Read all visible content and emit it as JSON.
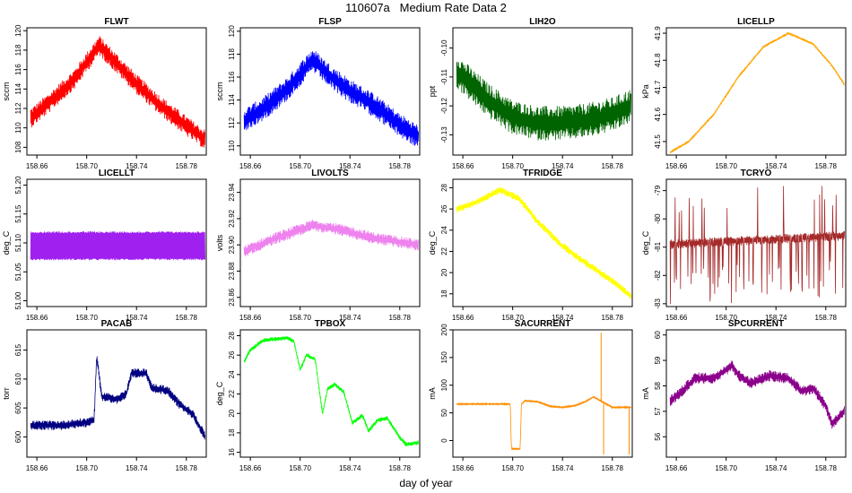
{
  "figure": {
    "title": "110607a   Medium Rate Data 2",
    "shared_xlabel": "day of year"
  },
  "chart_data": [
    {
      "type": "line",
      "title": "FLWT",
      "ylabel": "sccm",
      "color": "#ff0000",
      "xlim": [
        158.652,
        158.796
      ],
      "ylim": [
        107.2,
        120.3
      ],
      "xticks": [
        "158.66",
        "158.70",
        "158.74",
        "158.78"
      ],
      "yticks": [
        "108",
        "110",
        "112",
        "114",
        "116",
        "118",
        "120"
      ],
      "trend": {
        "x": [
          158.655,
          158.67,
          158.69,
          158.71,
          158.725,
          158.74,
          158.76,
          158.78,
          158.795
        ],
        "y": [
          111,
          112.6,
          115,
          118.5,
          116.5,
          114.5,
          112.2,
          110.2,
          108.8
        ]
      },
      "noise": 2.8
    },
    {
      "type": "line",
      "title": "FLSP",
      "ylabel": "sccm",
      "color": "#0000ff",
      "xlim": [
        158.652,
        158.796
      ],
      "ylim": [
        109.2,
        120.3
      ],
      "xticks": [
        "158.66",
        "158.70",
        "158.74",
        "158.78"
      ],
      "yticks": [
        "110",
        "112",
        "114",
        "116",
        "118",
        "120"
      ],
      "trend": {
        "x": [
          158.655,
          158.67,
          158.69,
          158.71,
          158.725,
          158.74,
          158.76,
          158.78,
          158.795
        ],
        "y": [
          112.2,
          113.2,
          115,
          117.5,
          116,
          114.8,
          113.5,
          111.8,
          110.8
        ]
      },
      "noise": 2.8
    },
    {
      "type": "line",
      "title": "LIH2O",
      "ylabel": "ppt",
      "color": "#006400",
      "xlim": [
        158.652,
        158.796
      ],
      "ylim": [
        -0.137,
        -0.093
      ],
      "xticks": [
        "158.66",
        "158.70",
        "158.74",
        "158.78"
      ],
      "yticks": [
        "-0.10",
        "-0.11",
        "-0.12",
        "-0.13"
      ],
      "trend": {
        "x": [
          158.655,
          158.665,
          158.68,
          158.7,
          158.72,
          158.74,
          158.76,
          158.78,
          158.795
        ],
        "y": [
          -0.108,
          -0.112,
          -0.118,
          -0.124,
          -0.126,
          -0.126,
          -0.125,
          -0.123,
          -0.12
        ]
      },
      "noise": 0.016
    },
    {
      "type": "line",
      "title": "LICELLP",
      "ylabel": "kPa",
      "color": "#ffa500",
      "xlim": [
        158.652,
        158.796
      ],
      "ylim": [
        41.45,
        41.92
      ],
      "xticks": [
        "158.66",
        "158.70",
        "158.74",
        "158.78"
      ],
      "yticks": [
        "41.5",
        "41.6",
        "41.7",
        "41.8",
        "41.9"
      ],
      "trend": {
        "x": [
          158.655,
          158.67,
          158.69,
          158.71,
          158.73,
          158.75,
          158.77,
          158.785,
          158.795
        ],
        "y": [
          41.46,
          41.5,
          41.6,
          41.74,
          41.85,
          41.9,
          41.86,
          41.78,
          41.71
        ]
      },
      "noise": 0.012
    },
    {
      "type": "line",
      "title": "LICELLT",
      "ylabel": "deg_C",
      "color": "#a020f0",
      "xlim": [
        158.652,
        158.796
      ],
      "ylim": [
        50.99,
        51.21
      ],
      "xticks": [
        "158.66",
        "158.70",
        "158.74",
        "158.78"
      ],
      "yticks": [
        "51.00",
        "51.05",
        "51.10",
        "51.15",
        "51.20"
      ],
      "trend": {
        "x": [
          158.655,
          158.795
        ],
        "y": [
          51.09,
          51.09
        ]
      },
      "band": [
        51.07,
        51.12
      ]
    },
    {
      "type": "line",
      "title": "LIVOLTS",
      "ylabel": "volts",
      "color": "#ee82ee",
      "xlim": [
        158.652,
        158.796
      ],
      "ylim": [
        23.853,
        23.95
      ],
      "xticks": [
        "158.66",
        "158.70",
        "158.74",
        "158.78"
      ],
      "yticks": [
        "23.86",
        "23.88",
        "23.90",
        "23.92",
        "23.94"
      ],
      "trend": {
        "x": [
          158.655,
          158.68,
          158.71,
          158.73,
          158.76,
          158.795
        ],
        "y": [
          23.895,
          23.905,
          23.915,
          23.912,
          23.905,
          23.9
        ]
      },
      "noise": 0.012
    },
    {
      "type": "line",
      "title": "TFRIDGE",
      "ylabel": "deg_C",
      "color": "#ffff00",
      "xlim": [
        158.652,
        158.796
      ],
      "ylim": [
        16.8,
        28.8
      ],
      "xticks": [
        "158.66",
        "158.70",
        "158.74",
        "158.78"
      ],
      "yticks": [
        "18",
        "20",
        "22",
        "24",
        "26",
        "28"
      ],
      "trend": {
        "x": [
          158.655,
          158.67,
          158.69,
          158.705,
          158.72,
          158.74,
          158.76,
          158.78,
          158.795
        ],
        "y": [
          26,
          26.6,
          27.8,
          27,
          24.8,
          22.5,
          20.8,
          19.2,
          17.8
        ]
      },
      "noise": 0.9
    },
    {
      "type": "line",
      "title": "TCRYO",
      "ylabel": "deg_C",
      "color": "#a52a2a",
      "xlim": [
        158.652,
        158.796
      ],
      "ylim": [
        -83.1,
        -78.6
      ],
      "xticks": [
        "158.66",
        "158.70",
        "158.74",
        "158.78"
      ],
      "yticks": [
        "-79",
        "-80",
        "-81",
        "-82",
        "-83"
      ],
      "trend": {
        "x": [
          158.655,
          158.795
        ],
        "y": [
          -80.9,
          -80.6
        ]
      },
      "noise": 0.45,
      "spikes": true
    },
    {
      "type": "line",
      "title": "PACAB",
      "ylabel": "torr",
      "color": "#000080",
      "xlim": [
        158.652,
        158.796
      ],
      "ylim": [
        596.5,
        618.5
      ],
      "xticks": [
        "158.66",
        "158.70",
        "158.74",
        "158.78"
      ],
      "yticks": [
        "600",
        "605",
        "610",
        "615"
      ],
      "trend": {
        "x": [
          158.655,
          158.68,
          158.7,
          158.706,
          158.708,
          158.712,
          158.725,
          158.732,
          158.736,
          158.748,
          158.752,
          158.765,
          158.775,
          158.785,
          158.795
        ],
        "y": [
          602,
          602,
          602.5,
          603,
          614,
          607,
          606.5,
          607.5,
          611,
          611,
          608.5,
          608,
          605.5,
          604,
          600
        ]
      },
      "noise": 2.2
    },
    {
      "type": "line",
      "title": "TPBOX",
      "ylabel": "deg_C",
      "color": "#00ff00",
      "xlim": [
        158.652,
        158.796
      ],
      "ylim": [
        15.5,
        28.6
      ],
      "xticks": [
        "158.66",
        "158.70",
        "158.74",
        "158.78"
      ],
      "yticks": [
        "16",
        "18",
        "20",
        "22",
        "24",
        "26",
        "28"
      ],
      "trend": {
        "x": [
          158.655,
          158.66,
          158.67,
          158.69,
          158.695,
          158.7,
          158.705,
          158.712,
          158.718,
          158.722,
          158.728,
          158.735,
          158.742,
          158.75,
          158.755,
          158.762,
          158.77,
          158.78,
          158.785,
          158.795
        ],
        "y": [
          25.3,
          26.5,
          27.5,
          27.8,
          27.4,
          24.5,
          26,
          25.6,
          20,
          22.5,
          23,
          22.2,
          19,
          19.8,
          18.2,
          19.3,
          19.5,
          17.5,
          16.8,
          17
        ]
      },
      "noise": 0.6
    },
    {
      "type": "line",
      "title": "SACURRENT",
      "ylabel": "mA",
      "color": "#ff8c00",
      "xlim": [
        158.652,
        158.796
      ],
      "ylim": [
        -30,
        200
      ],
      "xticks": [
        "158.66",
        "158.70",
        "158.74",
        "158.78"
      ],
      "yticks": [
        "0",
        "50",
        "100",
        "150",
        "200"
      ],
      "trend": {
        "x": [
          158.655,
          158.698,
          158.699,
          158.706,
          158.707,
          158.71,
          158.72,
          158.73,
          158.74,
          158.75,
          158.758,
          158.765,
          158.772,
          158.78,
          158.795
        ],
        "y": [
          66,
          66,
          -15,
          -15,
          66,
          72,
          70,
          62,
          60,
          63,
          70,
          79,
          70,
          60,
          60
        ]
      },
      "noise": 3,
      "spikes_list": [
        [
          158.771,
          195
        ],
        [
          158.773,
          -25
        ],
        [
          158.7935,
          -25
        ]
      ]
    },
    {
      "type": "line",
      "title": "SPCURRENT",
      "ylabel": "mA",
      "color": "#8b008b",
      "xlim": [
        158.652,
        158.796
      ],
      "ylim": [
        55.2,
        60.2
      ],
      "xticks": [
        "158.66",
        "158.70",
        "158.74",
        "158.78"
      ],
      "yticks": [
        "56",
        "57",
        "58",
        "59",
        "60"
      ],
      "trend": {
        "x": [
          158.655,
          158.665,
          158.675,
          158.69,
          158.705,
          158.71,
          158.72,
          158.735,
          158.75,
          158.76,
          158.77,
          158.78,
          158.785,
          158.795
        ],
        "y": [
          57.4,
          57.8,
          58.3,
          58.3,
          58.8,
          58.4,
          58.1,
          58.4,
          58.3,
          57.8,
          57.9,
          57.2,
          56.5,
          57
        ]
      },
      "noise": 0.6
    }
  ]
}
